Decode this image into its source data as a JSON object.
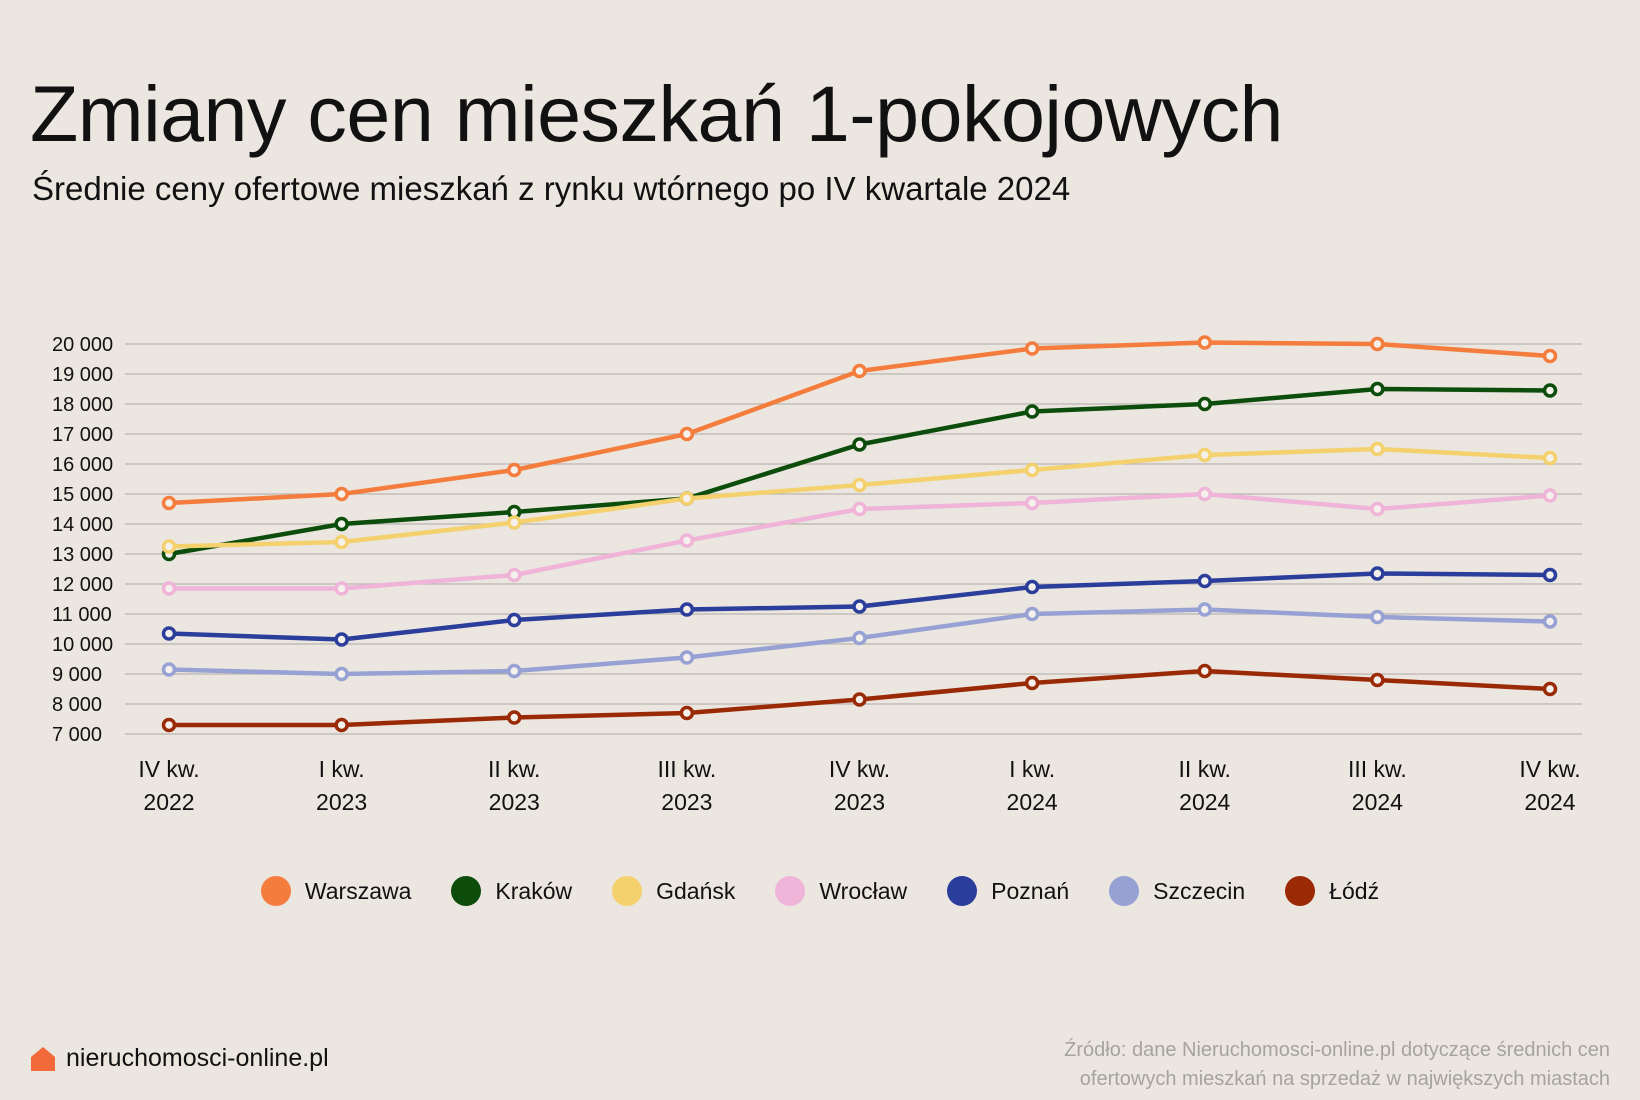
{
  "title": "Zmiany cen mieszkań 1-pokojowych",
  "subtitle": "Średnie ceny ofertowe mieszkań z rynku wtórnego po IV kwartale 2024",
  "brand": {
    "name": "nieruchomosci-online.pl",
    "icon": "house-icon",
    "icon_color": "#f26a3a"
  },
  "source": {
    "line1": "Źródło: dane Nieruchomosci-online.pl dotyczące średnich cen",
    "line2": "ofertowych mieszkań na sprzedaż w największych miastach"
  },
  "chart_data": {
    "type": "line",
    "categories": [
      [
        "IV kw.",
        "2022"
      ],
      [
        "I kw.",
        "2023"
      ],
      [
        "II kw.",
        "2023"
      ],
      [
        "III kw.",
        "2023"
      ],
      [
        "IV kw.",
        "2023"
      ],
      [
        "I kw.",
        "2024"
      ],
      [
        "II kw.",
        "2024"
      ],
      [
        "III kw.",
        "2024"
      ],
      [
        "IV kw.",
        "2024"
      ]
    ],
    "ylim": [
      7000,
      20000
    ],
    "yticks": [
      7000,
      8000,
      9000,
      10000,
      11000,
      12000,
      13000,
      14000,
      15000,
      16000,
      17000,
      18000,
      19000,
      20000
    ],
    "ytick_labels": [
      "7 000",
      "8 000",
      "9 000",
      "10 000",
      "11 000",
      "12 000",
      "13 000",
      "14 000",
      "15 000",
      "16 000",
      "17 000",
      "18 000",
      "19 000",
      "20 000"
    ],
    "grid": true,
    "legend_position": "bottom",
    "series": [
      {
        "name": "Warszawa",
        "color": "#f47c3c",
        "values": [
          14700,
          15000,
          15800,
          17000,
          19100,
          19850,
          20050,
          20000,
          19600
        ]
      },
      {
        "name": "Kraków",
        "color": "#0c4d0c",
        "values": [
          13000,
          14000,
          14400,
          14850,
          16650,
          17750,
          18000,
          18500,
          18450
        ]
      },
      {
        "name": "Gdańsk",
        "color": "#f5d16d",
        "values": [
          13250,
          13400,
          14050,
          14850,
          15300,
          15800,
          16300,
          16500,
          16200
        ]
      },
      {
        "name": "Wrocław",
        "color": "#efb4d8",
        "values": [
          11850,
          11850,
          12300,
          13450,
          14500,
          14700,
          15000,
          14500,
          14950
        ]
      },
      {
        "name": "Poznań",
        "color": "#2c3e9b",
        "values": [
          10350,
          10150,
          10800,
          11150,
          11250,
          11900,
          12100,
          12350,
          12300
        ]
      },
      {
        "name": "Szczecin",
        "color": "#97a1d4",
        "values": [
          9150,
          9000,
          9100,
          9550,
          10200,
          11000,
          11150,
          10900,
          10750
        ]
      },
      {
        "name": "Łódź",
        "color": "#9a2a06",
        "values": [
          7300,
          7300,
          7550,
          7700,
          8150,
          8700,
          9100,
          8800,
          8500
        ]
      }
    ]
  }
}
